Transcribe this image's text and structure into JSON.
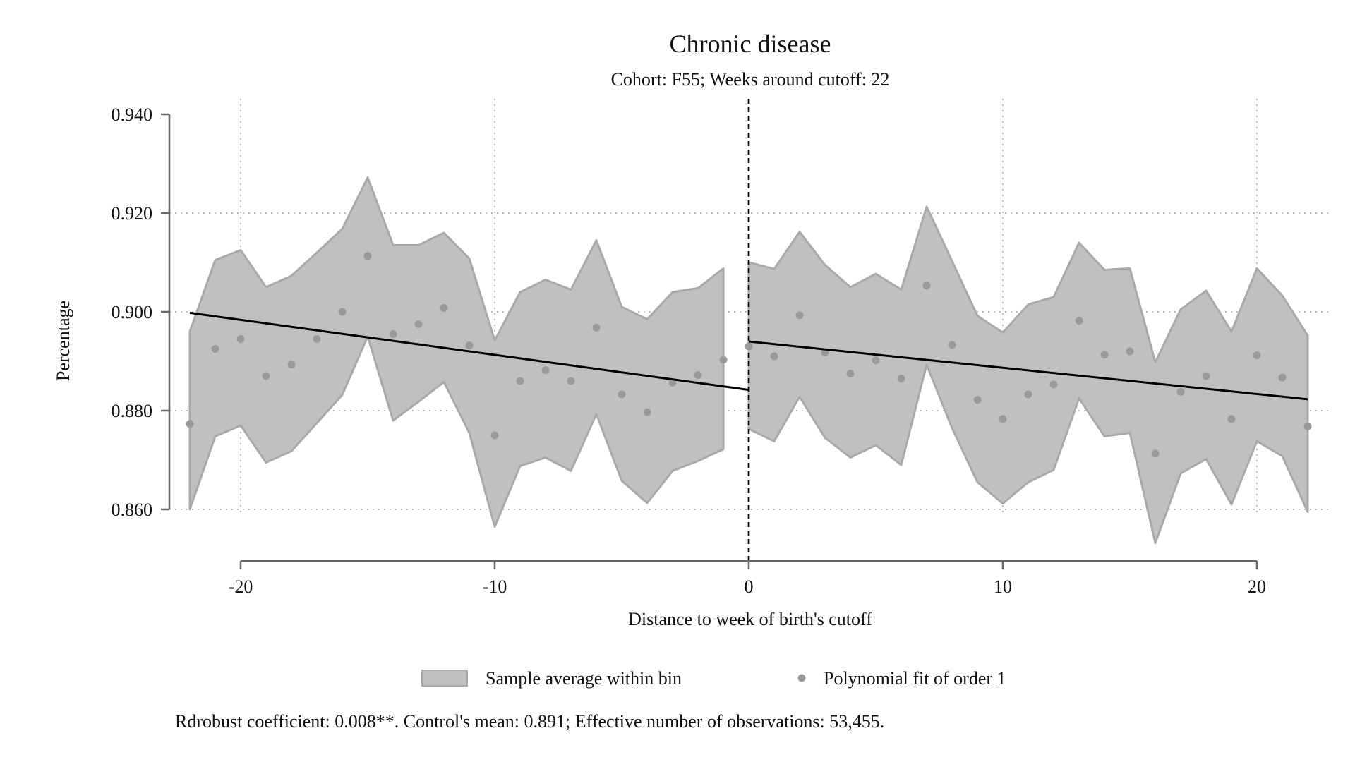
{
  "chart_data": {
    "type": "scatter",
    "title": "Chronic disease",
    "subtitle": "Cohort: F55; Weeks around cutoff: 22",
    "xlabel": "Distance to week of birth's cutoff",
    "ylabel": "Percentage",
    "xlim": [
      -22,
      22
    ],
    "ylim": [
      0.85,
      0.94
    ],
    "x_ticks": [
      -20,
      -10,
      0,
      10,
      20
    ],
    "y_ticks": [
      0.86,
      0.88,
      0.9,
      0.92,
      0.94
    ],
    "x_tick_labels": [
      "-20",
      "-10",
      "0",
      "10",
      "20"
    ],
    "y_tick_labels": [
      "0.860",
      "0.880",
      "0.900",
      "0.920",
      "0.940"
    ],
    "grid": true,
    "cutoff_line_x": 0,
    "legend": {
      "placement": "bottom",
      "entries": [
        {
          "label": "Sample average within bin",
          "kind": "band",
          "color": "#c0c0c0"
        },
        {
          "label": "Polynomial fit of order 1",
          "kind": "point",
          "color": "#9a9a9a"
        }
      ]
    },
    "note": "Rdrobust coefficient: 0.008**. Control's mean: 0.891; Effective number of observations: 53,455.",
    "colors": {
      "band_fill": "#c0c0c0",
      "band_edge": "#a9a9a9",
      "points": "#9a9a9a",
      "fit_line": "#000000",
      "axis": "#666666",
      "grid": "#aaaaaa"
    },
    "points": {
      "x": [
        -22,
        -21,
        -20,
        -19,
        -18,
        -17,
        -16,
        -15,
        -14,
        -13,
        -12,
        -11,
        -10,
        -9,
        -8,
        -7,
        -6,
        -5,
        -4,
        -3,
        -2,
        -1,
        0,
        1,
        2,
        3,
        4,
        5,
        6,
        7,
        8,
        9,
        10,
        11,
        12,
        13,
        14,
        15,
        16,
        17,
        18,
        19,
        20,
        21,
        22
      ],
      "y": [
        0.8773,
        0.8925,
        0.8945,
        0.887,
        0.8893,
        0.8945,
        0.9,
        0.9113,
        0.8955,
        0.8975,
        0.9008,
        0.8932,
        0.875,
        0.886,
        0.8882,
        0.886,
        0.8968,
        0.8833,
        0.8797,
        0.8857,
        0.8872,
        0.8903,
        0.893,
        0.891,
        0.8993,
        0.8918,
        0.8875,
        0.8902,
        0.8865,
        0.9053,
        0.8933,
        0.8822,
        0.8783,
        0.8833,
        0.8853,
        0.8982,
        0.8913,
        0.892,
        0.8713,
        0.8838,
        0.887,
        0.8783,
        0.8912,
        0.8867,
        0.8768
      ]
    },
    "band_left": {
      "x": [
        -22,
        -21,
        -20,
        -19,
        -18,
        -17,
        -16,
        -15,
        -14,
        -13,
        -12,
        -11,
        -10,
        -9,
        -8,
        -7,
        -6,
        -5,
        -4,
        -3,
        -2,
        -1
      ],
      "upper": [
        0.896,
        0.9105,
        0.9125,
        0.905,
        0.9073,
        0.912,
        0.9168,
        0.9272,
        0.9135,
        0.9135,
        0.916,
        0.9108,
        0.8942,
        0.904,
        0.9065,
        0.9045,
        0.9145,
        0.901,
        0.8985,
        0.904,
        0.9048,
        0.9088
      ],
      "lower": [
        0.86,
        0.8748,
        0.877,
        0.8695,
        0.8718,
        0.8775,
        0.8832,
        0.895,
        0.878,
        0.8818,
        0.8858,
        0.8755,
        0.8565,
        0.8688,
        0.8705,
        0.8678,
        0.8793,
        0.8658,
        0.8613,
        0.8678,
        0.8698,
        0.8722
      ]
    },
    "band_right": {
      "x": [
        0,
        1,
        2,
        3,
        4,
        5,
        6,
        7,
        8,
        9,
        10,
        11,
        12,
        13,
        14,
        15,
        16,
        17,
        18,
        19,
        20,
        21,
        22
      ],
      "upper": [
        0.91,
        0.9087,
        0.9162,
        0.9095,
        0.905,
        0.9077,
        0.9045,
        0.9213,
        0.9103,
        0.8992,
        0.8958,
        0.9015,
        0.903,
        0.914,
        0.9085,
        0.9088,
        0.8898,
        0.9005,
        0.9043,
        0.896,
        0.9088,
        0.9033,
        0.8952
      ],
      "lower": [
        0.8763,
        0.8738,
        0.8828,
        0.8745,
        0.8705,
        0.873,
        0.869,
        0.8893,
        0.8765,
        0.8655,
        0.8612,
        0.8655,
        0.868,
        0.8825,
        0.8748,
        0.8755,
        0.8532,
        0.8673,
        0.8702,
        0.861,
        0.8738,
        0.8708,
        0.8595
      ]
    },
    "fit_left": {
      "x": [
        -22,
        0
      ],
      "y": [
        0.8998,
        0.8842
      ]
    },
    "fit_right": {
      "x": [
        0,
        22
      ],
      "y": [
        0.894,
        0.8823
      ]
    }
  }
}
